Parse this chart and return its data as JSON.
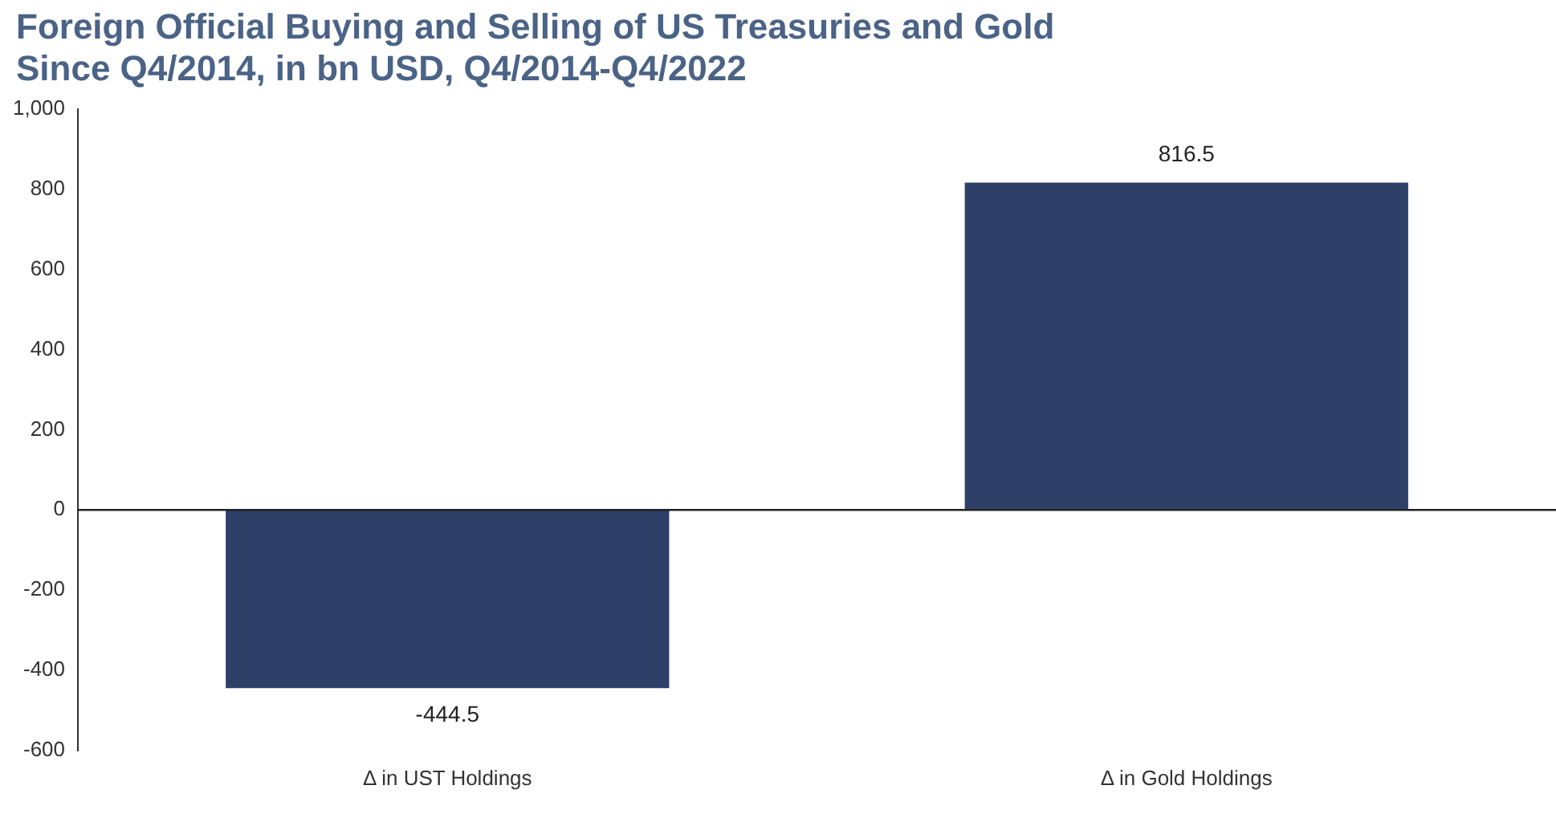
{
  "chart_data": {
    "type": "bar",
    "title": "Foreign Official Buying and Selling of US Treasuries and Gold\nSince Q4/2014, in bn USD, Q4/2014-Q4/2022",
    "categories": [
      "Δ in UST Holdings",
      "Δ in Gold Holdings"
    ],
    "values": [
      -444.5,
      816.5
    ],
    "ref_lines": [
      {
        "axis": "y",
        "value": 0,
        "color": "#222222"
      }
    ],
    "color": "#2e4068",
    "data_labels": true,
    "grid": false,
    "ylim": [
      -600,
      1000
    ],
    "yticks": [
      -600,
      -400,
      -200,
      0,
      200,
      400,
      600,
      800,
      {
        "value": 1000,
        "label": "1,000"
      }
    ]
  }
}
